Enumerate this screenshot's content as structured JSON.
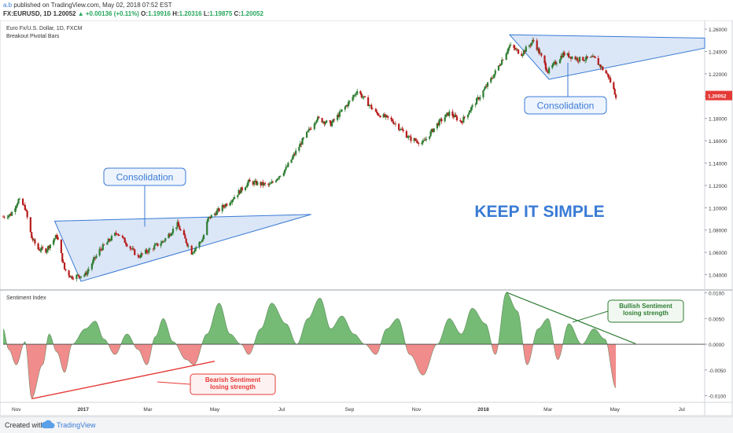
{
  "header": {
    "author": "a.b",
    "published": "published on TradingView.com, May 02, 2018 07:52 EST",
    "symbol": "FX:EURUSD, 1D",
    "price": "1.20052",
    "change": "▲ +0.00136 (+0.11%)",
    "o_label": "O:",
    "o_value": "1.19916",
    "h_label": "H:",
    "h_value": "1.20316",
    "l_label": "L:",
    "l_value": "1.19875",
    "c_label": "C:",
    "c_value": "1.20052"
  },
  "footer": {
    "created_with": "Created with",
    "brand": "TradingView",
    "cloud_icon": "cloud-logo-icon"
  },
  "colors": {
    "up": "#2e7d32",
    "down": "#b71c1c",
    "accent": "#3a7bd5",
    "bullish": "#2e7d32",
    "bearish": "#e53935",
    "pos_fill": "#66b366",
    "neg_fill": "#f08080"
  },
  "chart_data": [
    {
      "type": "candlestick",
      "title": "Euro Fx/U.S. Dollar, 1D, FXCM",
      "subtitle": "Breakout Pivotal Bars",
      "y_ticks": [
        "1.26000",
        "1.24000",
        "1.22000",
        "1.20000",
        "1.18000",
        "1.16000",
        "1.14000",
        "1.12000",
        "1.10000",
        "1.08000",
        "1.06000",
        "1.04000"
      ],
      "ylim": [
        1.027,
        1.265
      ],
      "last_price_label": "1.20052",
      "series": [
        {
          "x": "2016-10-20",
          "y": 1.092
        },
        {
          "x": "2016-10-27",
          "y": 1.094
        },
        {
          "x": "2016-11-03",
          "y": 1.107
        },
        {
          "x": "2016-11-09",
          "y": 1.1
        },
        {
          "x": "2016-11-15",
          "y": 1.073
        },
        {
          "x": "2016-11-21",
          "y": 1.063
        },
        {
          "x": "2016-11-28",
          "y": 1.062
        },
        {
          "x": "2016-12-08",
          "y": 1.075
        },
        {
          "x": "2016-12-15",
          "y": 1.045
        },
        {
          "x": "2016-12-21",
          "y": 1.038
        },
        {
          "x": "2017-01-03",
          "y": 1.04
        },
        {
          "x": "2017-01-16",
          "y": 1.062
        },
        {
          "x": "2017-02-01",
          "y": 1.078
        },
        {
          "x": "2017-02-20",
          "y": 1.056
        },
        {
          "x": "2017-03-15",
          "y": 1.07
        },
        {
          "x": "2017-03-28",
          "y": 1.085
        },
        {
          "x": "2017-04-10",
          "y": 1.06
        },
        {
          "x": "2017-04-20",
          "y": 1.072
        },
        {
          "x": "2017-04-25",
          "y": 1.09
        },
        {
          "x": "2017-05-16",
          "y": 1.107
        },
        {
          "x": "2017-06-01",
          "y": 1.123
        },
        {
          "x": "2017-06-20",
          "y": 1.12
        },
        {
          "x": "2017-07-05",
          "y": 1.135
        },
        {
          "x": "2017-07-20",
          "y": 1.16
        },
        {
          "x": "2017-08-02",
          "y": 1.18
        },
        {
          "x": "2017-08-15",
          "y": 1.175
        },
        {
          "x": "2017-09-01",
          "y": 1.195
        },
        {
          "x": "2017-09-08",
          "y": 1.205
        },
        {
          "x": "2017-09-25",
          "y": 1.185
        },
        {
          "x": "2017-10-10",
          "y": 1.178
        },
        {
          "x": "2017-10-26",
          "y": 1.162
        },
        {
          "x": "2017-11-07",
          "y": 1.158
        },
        {
          "x": "2017-11-20",
          "y": 1.175
        },
        {
          "x": "2017-12-01",
          "y": 1.185
        },
        {
          "x": "2017-12-12",
          "y": 1.177
        },
        {
          "x": "2017-12-29",
          "y": 1.2
        },
        {
          "x": "2018-01-10",
          "y": 1.218
        },
        {
          "x": "2018-01-25",
          "y": 1.245
        },
        {
          "x": "2018-02-05",
          "y": 1.238
        },
        {
          "x": "2018-02-16",
          "y": 1.25
        },
        {
          "x": "2018-03-01",
          "y": 1.222
        },
        {
          "x": "2018-03-15",
          "y": 1.238
        },
        {
          "x": "2018-03-29",
          "y": 1.233
        },
        {
          "x": "2018-04-12",
          "y": 1.234
        },
        {
          "x": "2018-04-25",
          "y": 1.218
        },
        {
          "x": "2018-05-02",
          "y": 1.2005
        }
      ],
      "annotations": [
        {
          "text": "Consolidation",
          "type": "callout"
        },
        {
          "text": "Consolidation",
          "type": "callout"
        },
        {
          "text": "KEEP IT SIMPLE",
          "type": "caption"
        }
      ]
    },
    {
      "type": "area",
      "title": "Sentiment Index",
      "y_ticks": [
        "0.0100",
        "0.0050",
        "0.0000",
        "-0.0050",
        "-0.0100"
      ],
      "ylim": [
        -0.0113,
        0.0104
      ],
      "series": [
        {
          "x": "2016-10-20",
          "y": 0.003
        },
        {
          "x": "2016-10-25",
          "y": -0.001
        },
        {
          "x": "2016-11-01",
          "y": -0.004
        },
        {
          "x": "2016-11-09",
          "y": 0.0005
        },
        {
          "x": "2016-11-15",
          "y": -0.0105
        },
        {
          "x": "2016-11-25",
          "y": -0.004
        },
        {
          "x": "2016-12-01",
          "y": 0.002
        },
        {
          "x": "2016-12-08",
          "y": -0.0015
        },
        {
          "x": "2016-12-15",
          "y": -0.0055
        },
        {
          "x": "2016-12-22",
          "y": 0.0
        },
        {
          "x": "2017-01-03",
          "y": 0.003
        },
        {
          "x": "2017-01-12",
          "y": 0.0045
        },
        {
          "x": "2017-01-20",
          "y": 0.001
        },
        {
          "x": "2017-01-30",
          "y": -0.002
        },
        {
          "x": "2017-02-10",
          "y": 0.002
        },
        {
          "x": "2017-02-20",
          "y": -0.001
        },
        {
          "x": "2017-02-28",
          "y": -0.004
        },
        {
          "x": "2017-03-08",
          "y": 0.0015
        },
        {
          "x": "2017-03-15",
          "y": 0.005
        },
        {
          "x": "2017-03-24",
          "y": 0.0005
        },
        {
          "x": "2017-04-05",
          "y": -0.003
        },
        {
          "x": "2017-04-12",
          "y": -0.004
        },
        {
          "x": "2017-04-24",
          "y": 0.002
        },
        {
          "x": "2017-05-05",
          "y": 0.008
        },
        {
          "x": "2017-05-15",
          "y": 0.002
        },
        {
          "x": "2017-05-25",
          "y": 0.0
        },
        {
          "x": "2017-06-01",
          "y": -0.002
        },
        {
          "x": "2017-06-12",
          "y": 0.003
        },
        {
          "x": "2017-06-22",
          "y": 0.008
        },
        {
          "x": "2017-07-05",
          "y": 0.004
        },
        {
          "x": "2017-07-15",
          "y": 0.0
        },
        {
          "x": "2017-07-25",
          "y": 0.005
        },
        {
          "x": "2017-08-05",
          "y": 0.009
        },
        {
          "x": "2017-08-15",
          "y": 0.003
        },
        {
          "x": "2017-08-25",
          "y": 0.0055
        },
        {
          "x": "2017-09-05",
          "y": 0.002
        },
        {
          "x": "2017-09-15",
          "y": 0.0
        },
        {
          "x": "2017-09-25",
          "y": -0.002
        },
        {
          "x": "2017-10-05",
          "y": 0.003
        },
        {
          "x": "2017-10-15",
          "y": 0.005
        },
        {
          "x": "2017-10-26",
          "y": -0.002
        },
        {
          "x": "2017-11-07",
          "y": -0.006
        },
        {
          "x": "2017-11-20",
          "y": 0.0
        },
        {
          "x": "2017-12-01",
          "y": 0.005
        },
        {
          "x": "2017-12-12",
          "y": 0.002
        },
        {
          "x": "2017-12-22",
          "y": 0.007
        },
        {
          "x": "2018-01-03",
          "y": 0.004
        },
        {
          "x": "2018-01-12",
          "y": -0.002
        },
        {
          "x": "2018-01-22",
          "y": 0.01
        },
        {
          "x": "2018-02-01",
          "y": 0.0065
        },
        {
          "x": "2018-02-10",
          "y": -0.004
        },
        {
          "x": "2018-02-20",
          "y": 0.003
        },
        {
          "x": "2018-03-01",
          "y": 0.005
        },
        {
          "x": "2018-03-10",
          "y": -0.003
        },
        {
          "x": "2018-03-20",
          "y": 0.004
        },
        {
          "x": "2018-04-01",
          "y": 0.0
        },
        {
          "x": "2018-04-12",
          "y": 0.003
        },
        {
          "x": "2018-04-22",
          "y": 0.001
        },
        {
          "x": "2018-05-02",
          "y": -0.0085
        }
      ],
      "annotations": [
        {
          "text": [
            "Bullish Sentiment",
            "losing strength"
          ],
          "color": "green"
        },
        {
          "text": [
            "Bearish Sentiment",
            "losing strength"
          ],
          "color": "red"
        }
      ],
      "x_ticks": [
        "Nov",
        "2017",
        "Mar",
        "May",
        "Jul",
        "Sep",
        "Nov",
        "2018",
        "Mar",
        "May",
        "Jul"
      ]
    }
  ]
}
